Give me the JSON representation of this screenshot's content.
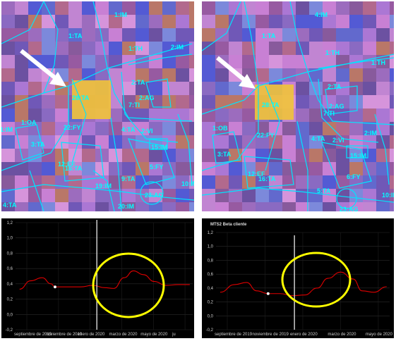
{
  "maps": [
    {
      "parcels": [
        "1:IM",
        "1:TA",
        "1:TH",
        "2:IM",
        "2:TA",
        "28:TA",
        "2:AG",
        "7:TI",
        "4:TA",
        "22:FY",
        "1:OA",
        "1:IM",
        "3:TA",
        "12:EF",
        "16:TA",
        "2:VI",
        "15:IM",
        "5:FY",
        "19:IM",
        "9:TA",
        "23:AG",
        "20:IM",
        "10:IM",
        "4:TA"
      ]
    },
    {
      "parcels": [
        "4:IM",
        "1:TA",
        "1:TH",
        "1:TH",
        "2:TA",
        "28:TA",
        "2:AG",
        "7:TI",
        "4:TA",
        "22:FY",
        "1:OB",
        "3:TA",
        "12:EF",
        "16:TA",
        "2:VI",
        "15:IM",
        "2:IM",
        "6:FY",
        "5:TA",
        "10:IM",
        "23:AG"
      ]
    }
  ],
  "charts": [
    {
      "title": "",
      "y_ticks": [
        "1,2",
        "1,0",
        "0,8",
        "0,6",
        "0,4",
        "0,2",
        "0,0",
        "-0,2"
      ],
      "x_ticks": [
        "septiembre de 2019",
        "noviembre de 2019",
        "enero de 2020",
        "marzo de 2020",
        "mayo de 2020",
        "ju"
      ]
    },
    {
      "title": "MTS2 Beta cliente",
      "y_ticks": [
        "1,2",
        "1,0",
        "0,8",
        "0,6",
        "0,4",
        "0,2",
        "0,0",
        "-0,2"
      ],
      "x_ticks": [
        "septiembre de 2019",
        "noviembre de 2019",
        "enero de 2020",
        "marzo de 2020",
        "mayo de 2020"
      ]
    }
  ],
  "colors": {
    "parcel_line": "#00e5ff",
    "series_line": "#e00000",
    "ellipse": "#ffff00",
    "cursor_line": "#cccccc",
    "arrow": "#ffffff"
  },
  "chart_data": [
    {
      "type": "line",
      "ylim": [
        -0.2,
        1.2
      ],
      "x": [
        "2019-09-01",
        "2019-09-20",
        "2019-10-10",
        "2019-10-25",
        "2019-11-01",
        "2019-11-25",
        "2019-12-15",
        "2020-01-05",
        "2020-01-25",
        "2020-02-10",
        "2020-02-28",
        "2020-03-15",
        "2020-04-01",
        "2020-04-20",
        "2020-05-10",
        "2020-05-31",
        "2020-06-20"
      ],
      "series": [
        {
          "values": [
            0.33,
            0.44,
            0.48,
            0.4,
            0.36,
            0.36,
            0.36,
            0.38,
            0.35,
            0.34,
            0.48,
            0.57,
            0.52,
            0.43,
            0.38,
            0.39,
            0.39
          ]
        }
      ],
      "x_range": [
        "2019-08-25",
        "2020-06-25"
      ]
    },
    {
      "type": "line",
      "ylim": [
        -0.2,
        1.2
      ],
      "x": [
        "2019-09-01",
        "2019-09-25",
        "2019-10-15",
        "2019-11-01",
        "2019-11-20",
        "2019-12-10",
        "2019-12-31",
        "2020-01-20",
        "2020-02-10",
        "2020-02-28",
        "2020-03-20",
        "2020-04-10",
        "2020-04-25",
        "2020-05-15",
        "2020-06-05"
      ],
      "series": [
        {
          "values": [
            0.34,
            0.45,
            0.48,
            0.36,
            0.32,
            0.32,
            0.29,
            0.3,
            0.4,
            0.54,
            0.63,
            0.53,
            0.36,
            0.34,
            0.42
          ]
        }
      ],
      "x_range": [
        "2019-08-25",
        "2020-06-10"
      ]
    }
  ]
}
